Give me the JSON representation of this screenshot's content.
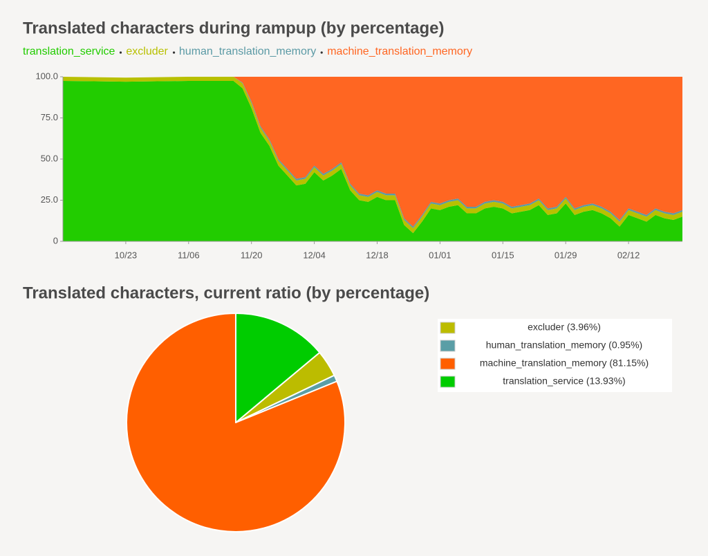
{
  "chart_data": [
    {
      "type": "stacked_area",
      "title": "Translated characters during rampup (by percentage)",
      "x": [
        "10/09",
        "10/23",
        "11/06",
        "11/16",
        "11/18",
        "11/20",
        "11/22",
        "11/24",
        "11/26",
        "11/28",
        "11/30",
        "12/02",
        "12/04",
        "12/06",
        "12/08",
        "12/10",
        "12/12",
        "12/14",
        "12/16",
        "12/18",
        "12/20",
        "12/22",
        "12/24",
        "12/26",
        "12/28",
        "12/30",
        "01/01",
        "01/03",
        "01/05",
        "01/07",
        "01/09",
        "01/11",
        "01/13",
        "01/15",
        "01/17",
        "01/19",
        "01/21",
        "01/23",
        "01/25",
        "01/27",
        "01/29",
        "01/31",
        "02/02",
        "02/04",
        "02/06",
        "02/08",
        "02/10",
        "02/12",
        "02/14",
        "02/16",
        "02/18",
        "02/20",
        "02/22",
        "02/24"
      ],
      "series": [
        {
          "name": "translation_service",
          "color": "#22cc00",
          "values": [
            97.5,
            97,
            97.5,
            97.5,
            93,
            81,
            66,
            58,
            46,
            40,
            34,
            35,
            42,
            37,
            40,
            44,
            31,
            25,
            24,
            27,
            25,
            25,
            10,
            5,
            12,
            20,
            19,
            21,
            22,
            17,
            17,
            20,
            21,
            20,
            17,
            18,
            19,
            22,
            16,
            17,
            23,
            16,
            18,
            19,
            17,
            14,
            9,
            16,
            14,
            12,
            16,
            14,
            13,
            15
          ]
        },
        {
          "name": "excluder",
          "color": "#b8c000",
          "values": [
            2.5,
            2.5,
            2.5,
            2.5,
            3,
            3,
            3,
            3,
            3,
            3,
            3,
            3,
            3,
            3,
            3,
            3,
            3,
            3,
            3,
            3,
            3,
            3,
            3,
            3,
            3,
            3,
            3,
            3,
            3,
            3,
            3,
            3,
            3,
            3,
            3,
            3,
            3,
            3,
            3,
            3,
            3,
            3,
            3,
            3,
            3,
            3,
            3,
            3,
            3,
            3,
            3,
            3,
            3,
            3
          ]
        },
        {
          "name": "human_translation_memory",
          "color": "#5b9aa5",
          "values": [
            0,
            0,
            0,
            0,
            0.5,
            1,
            1,
            1,
            1,
            1,
            1,
            1,
            1,
            1,
            1,
            1,
            1,
            1,
            1,
            1,
            1,
            1,
            1,
            1,
            1,
            1,
            1,
            1,
            1,
            1,
            1,
            1,
            1,
            1,
            1,
            1,
            1,
            1,
            1,
            1,
            1,
            1,
            1,
            1,
            1,
            1,
            1,
            1,
            1,
            1,
            1,
            1,
            1,
            1
          ]
        },
        {
          "name": "machine_translation_memory",
          "color": "#ff6622",
          "values": [
            0,
            0,
            0,
            0,
            3.5,
            15,
            30,
            38,
            50,
            56,
            62,
            61,
            54,
            59,
            56,
            52,
            65,
            71,
            72,
            69,
            71,
            71,
            86,
            91,
            84,
            76,
            77,
            75,
            74,
            79,
            79,
            76,
            75,
            76,
            79,
            78,
            77,
            74,
            80,
            79,
            73,
            80,
            78,
            77,
            79,
            82,
            87,
            80,
            82,
            84,
            80,
            82,
            83,
            81
          ]
        }
      ],
      "xlim": [
        "10/09",
        "02/24"
      ],
      "xticks": [
        "10/23",
        "11/06",
        "11/20",
        "12/04",
        "12/18",
        "01/01",
        "01/15",
        "01/29",
        "02/12"
      ],
      "ylim": [
        0,
        100
      ],
      "yticks": [
        0,
        {
          "value": 25,
          "label": "25.0"
        },
        {
          "value": 50,
          "label": "50.0"
        },
        {
          "value": 75,
          "label": "75.0"
        },
        {
          "value": 100,
          "label": "100.0"
        }
      ]
    },
    {
      "type": "pie",
      "title": "Translated characters, current ratio (by percentage)",
      "categories": [
        "excluder (3.96%)",
        "human_translation_memory (0.95%)",
        "machine_translation_memory (81.15%)",
        "translation_service (13.93%)"
      ],
      "values": [
        3.96,
        0.95,
        81.15,
        13.93
      ],
      "colors": [
        "#bcbc00",
        "#5a9ea6",
        "#ff5f00",
        "#00cc00"
      ]
    }
  ]
}
